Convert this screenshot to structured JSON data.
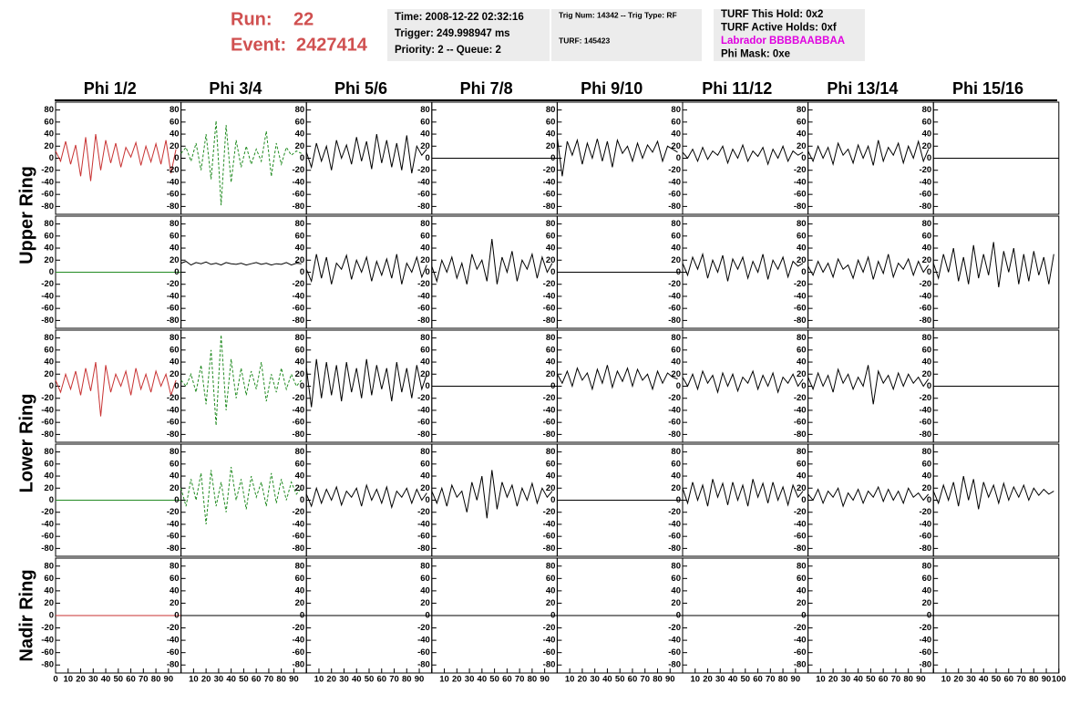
{
  "header": {
    "run_label": "Run:",
    "run": "22",
    "event_label": "Event:",
    "event": "2427414",
    "box1": [
      "Time: 2008-12-22 02:32:16",
      "Trigger: 249.998947 ms",
      "Priority: 2 -- Queue: 2"
    ],
    "box2": [
      "Trig Num: 14342 -- Trig Type: RF",
      "TURF: 145423"
    ],
    "box3": [
      "TURF This Hold: 0x2",
      "TURF Active Holds: 0xf",
      "Labrador BBBBAABBAA",
      "Phi Mask: 0xe"
    ],
    "box3_colors": [
      "#000000",
      "#000000",
      "#e000e0",
      "#000000"
    ]
  },
  "chart_data": {
    "type": "waveform_grid",
    "columns": [
      "Phi 1/2",
      "Phi 3/4",
      "Phi 5/6",
      "Phi 7/8",
      "Phi 9/10",
      "Phi 11/12",
      "Phi 13/14",
      "Phi 15/16"
    ],
    "ring_labels": [
      {
        "label": "Upper Ring",
        "rows": [
          0,
          1
        ]
      },
      {
        "label": "Lower Ring",
        "rows": [
          2,
          3
        ]
      },
      {
        "label": "Nadir Ring",
        "rows": [
          4
        ]
      }
    ],
    "ylim": [
      -90,
      90
    ],
    "yticks": [
      80,
      60,
      40,
      20,
      0,
      -20,
      -40,
      -60,
      -80
    ],
    "xlim": [
      0,
      100
    ],
    "xticks": [
      0,
      10,
      20,
      30,
      40,
      50,
      60,
      70,
      80,
      90,
      100
    ],
    "x": [
      0,
      4,
      8,
      12,
      16,
      20,
      24,
      28,
      32,
      36,
      40,
      44,
      48,
      52,
      56,
      60,
      64,
      68,
      72,
      76,
      80,
      84,
      88,
      92,
      96
    ],
    "rows": [
      [
        {
          "color": "#c83232",
          "values": [
            12,
            -5,
            28,
            -10,
            22,
            -30,
            35,
            -38,
            40,
            -20,
            30,
            -8,
            25,
            -15,
            18,
            2,
            26,
            -12,
            20,
            -6,
            24,
            -10,
            30,
            -25,
            15
          ]
        },
        {
          "color": "#228b22",
          "dashed": true,
          "values": [
            8,
            18,
            -5,
            25,
            -20,
            40,
            -35,
            62,
            -78,
            55,
            -40,
            30,
            -15,
            20,
            -10,
            15,
            -5,
            45,
            -30,
            25,
            -10,
            18,
            5,
            12,
            8
          ]
        },
        {
          "color": "#000000",
          "values": [
            10,
            -15,
            25,
            -5,
            20,
            -20,
            30,
            0,
            22,
            -10,
            35,
            -5,
            28,
            -18,
            40,
            -8,
            30,
            -15,
            25,
            -20,
            38,
            -25,
            20,
            5,
            15
          ]
        },
        {
          "color": "#000000",
          "x": [
            0,
            100
          ],
          "values": [
            0,
            0
          ]
        },
        {
          "color": "#000000",
          "values": [
            35,
            -30,
            28,
            5,
            30,
            -10,
            25,
            0,
            32,
            -5,
            28,
            -15,
            30,
            8,
            20,
            -5,
            25,
            0,
            22,
            10,
            28,
            -5,
            20,
            15,
            10
          ]
        },
        {
          "color": "#000000",
          "values": [
            10,
            0,
            15,
            -5,
            18,
            -2,
            12,
            5,
            20,
            -8,
            15,
            0,
            22,
            -5,
            12,
            3,
            18,
            -10,
            15,
            0,
            20,
            -5,
            12,
            5,
            10
          ]
        },
        {
          "color": "#000000",
          "values": [
            12,
            -5,
            20,
            0,
            18,
            -10,
            25,
            5,
            15,
            -8,
            22,
            0,
            20,
            -12,
            30,
            -5,
            18,
            5,
            25,
            -8,
            20,
            0,
            28,
            -5,
            15
          ]
        },
        {
          "color": "#000000",
          "x": [
            0,
            100
          ],
          "values": [
            0,
            0
          ]
        }
      ],
      [
        {
          "color": "#228b22",
          "x": [
            0,
            100
          ],
          "values": [
            0,
            0
          ]
        },
        {
          "color": "#000000",
          "values": [
            15,
            18,
            12,
            16,
            14,
            17,
            13,
            15,
            12,
            16,
            14,
            13,
            15,
            12,
            14,
            16,
            13,
            15,
            12,
            14,
            13,
            16,
            12,
            15,
            14
          ]
        },
        {
          "color": "#000000",
          "values": [
            5,
            -15,
            30,
            -10,
            25,
            -20,
            15,
            5,
            28,
            -12,
            20,
            0,
            25,
            -15,
            18,
            -5,
            22,
            -10,
            30,
            -20,
            15,
            0,
            25,
            -8,
            12
          ]
        },
        {
          "color": "#000000",
          "values": [
            10,
            -15,
            20,
            0,
            25,
            -10,
            15,
            -20,
            30,
            5,
            20,
            -15,
            55,
            -20,
            25,
            0,
            35,
            -15,
            20,
            5,
            30,
            -10,
            25,
            0,
            15
          ]
        },
        {
          "color": "#000000",
          "x": [
            0,
            100
          ],
          "values": [
            0,
            0
          ]
        },
        {
          "color": "#000000",
          "values": [
            15,
            -5,
            25,
            5,
            30,
            -10,
            20,
            0,
            28,
            -15,
            22,
            5,
            25,
            -10,
            18,
            0,
            30,
            -12,
            20,
            5,
            25,
            -8,
            18,
            10,
            15
          ]
        },
        {
          "color": "#000000",
          "values": [
            10,
            -5,
            18,
            0,
            15,
            -8,
            22,
            5,
            12,
            -10,
            20,
            0,
            25,
            -12,
            18,
            -2,
            30,
            -8,
            15,
            5,
            22,
            -5,
            18,
            0,
            12
          ]
        },
        {
          "color": "#000000",
          "values": [
            15,
            -10,
            30,
            0,
            40,
            -15,
            25,
            -20,
            45,
            -10,
            30,
            -5,
            50,
            -25,
            35,
            0,
            40,
            -20,
            30,
            -15,
            35,
            -5,
            25,
            -20,
            30
          ]
        }
      ],
      [
        {
          "color": "#c83232",
          "values": [
            10,
            -10,
            20,
            -5,
            25,
            -15,
            30,
            -8,
            40,
            -50,
            35,
            -10,
            20,
            0,
            25,
            -15,
            30,
            -5,
            20,
            -10,
            25,
            0,
            20,
            -15,
            10
          ]
        },
        {
          "color": "#228b22",
          "dashed": true,
          "values": [
            10,
            0,
            20,
            -10,
            35,
            -30,
            60,
            -65,
            85,
            -40,
            45,
            -20,
            30,
            -15,
            25,
            -5,
            40,
            -25,
            20,
            -10,
            30,
            -5,
            20,
            0,
            10
          ]
        },
        {
          "color": "#000000",
          "values": [
            30,
            -35,
            45,
            -20,
            40,
            -15,
            35,
            -25,
            40,
            -10,
            30,
            -20,
            45,
            -15,
            35,
            -5,
            30,
            -25,
            40,
            -10,
            30,
            -20,
            35,
            -5,
            20
          ]
        },
        {
          "color": "#000000",
          "x": [
            0,
            100
          ],
          "values": [
            0,
            0
          ]
        },
        {
          "color": "#000000",
          "values": [
            20,
            5,
            25,
            0,
            30,
            10,
            22,
            -5,
            28,
            5,
            35,
            -2,
            25,
            8,
            30,
            0,
            28,
            10,
            20,
            -5,
            25,
            5,
            22,
            15,
            12
          ]
        },
        {
          "color": "#000000",
          "values": [
            15,
            0,
            20,
            -5,
            25,
            5,
            18,
            -10,
            22,
            0,
            20,
            -8,
            15,
            5,
            25,
            -5,
            18,
            0,
            22,
            -10,
            15,
            5,
            20,
            0,
            12
          ]
        },
        {
          "color": "#000000",
          "values": [
            15,
            -5,
            22,
            0,
            18,
            -10,
            28,
            5,
            20,
            -5,
            15,
            0,
            35,
            -30,
            25,
            5,
            18,
            -5,
            22,
            0,
            20,
            5,
            15,
            0,
            12
          ]
        },
        {
          "color": "#000000",
          "x": [
            0,
            100
          ],
          "values": [
            0,
            0
          ]
        }
      ],
      [
        {
          "color": "#228b22",
          "x": [
            0,
            100
          ],
          "values": [
            0,
            0
          ]
        },
        {
          "color": "#228b22",
          "dashed": true,
          "values": [
            20,
            -10,
            35,
            0,
            45,
            -40,
            50,
            -10,
            30,
            -20,
            55,
            0,
            35,
            -15,
            40,
            5,
            30,
            -10,
            45,
            -5,
            35,
            0,
            30,
            10,
            20
          ]
        },
        {
          "color": "#000000",
          "values": [
            10,
            -10,
            20,
            -5,
            18,
            0,
            22,
            -8,
            15,
            5,
            20,
            -10,
            25,
            0,
            18,
            -5,
            22,
            -12,
            15,
            5,
            20,
            -5,
            18,
            0,
            12
          ]
        },
        {
          "color": "#000000",
          "values": [
            15,
            -5,
            20,
            -10,
            25,
            5,
            15,
            -20,
            30,
            0,
            40,
            -30,
            50,
            -15,
            30,
            5,
            25,
            -10,
            20,
            0,
            28,
            -5,
            20,
            5,
            15
          ]
        },
        {
          "color": "#000000",
          "x": [
            0,
            100
          ],
          "values": [
            0,
            0
          ]
        },
        {
          "color": "#000000",
          "values": [
            20,
            -5,
            30,
            0,
            25,
            -10,
            35,
            5,
            28,
            -8,
            30,
            0,
            25,
            -10,
            35,
            5,
            28,
            -5,
            30,
            0,
            22,
            -8,
            25,
            5,
            15
          ]
        },
        {
          "color": "#000000",
          "values": [
            10,
            0,
            18,
            -5,
            15,
            5,
            20,
            -10,
            12,
            0,
            18,
            -5,
            15,
            5,
            22,
            -2,
            18,
            0,
            15,
            -5,
            20,
            5,
            12,
            0,
            10
          ]
        },
        {
          "color": "#000000",
          "values": [
            15,
            -5,
            25,
            0,
            30,
            -10,
            40,
            0,
            35,
            -15,
            30,
            5,
            25,
            -5,
            28,
            0,
            22,
            5,
            25,
            0,
            20,
            8,
            18,
            10,
            15
          ]
        }
      ],
      [
        {
          "color": "#c83232",
          "x": [
            0,
            100
          ],
          "values": [
            0,
            0
          ]
        },
        {
          "color": "#000000",
          "x": [
            0,
            100
          ],
          "values": [
            0,
            0
          ]
        },
        {
          "color": "#000000",
          "x": [
            0,
            100
          ],
          "values": [
            0,
            0
          ]
        },
        {
          "color": "#000000",
          "x": [
            0,
            100
          ],
          "values": [
            0,
            0
          ]
        },
        {
          "color": "#000000",
          "x": [
            0,
            100
          ],
          "values": [
            0,
            0
          ]
        },
        {
          "color": "#000000",
          "x": [
            0,
            100
          ],
          "values": [
            0,
            0
          ]
        },
        {
          "color": "#000000",
          "x": [
            0,
            100
          ],
          "values": [
            0,
            0
          ]
        },
        {
          "color": "#000000",
          "x": [
            0,
            100
          ],
          "values": [
            0,
            0
          ]
        }
      ]
    ]
  }
}
